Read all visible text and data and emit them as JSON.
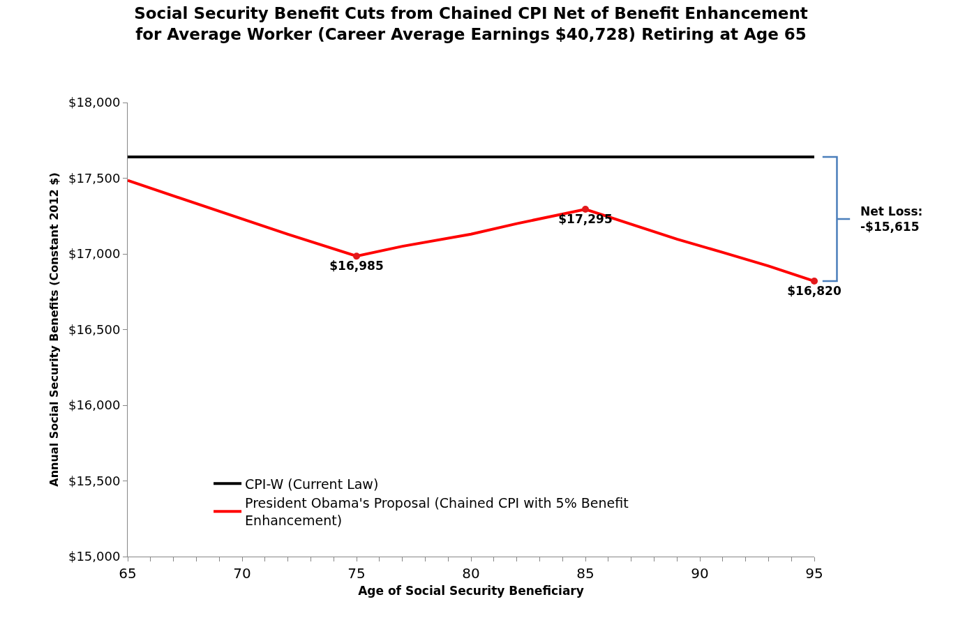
{
  "chart_data": {
    "type": "line",
    "title": "Social Security Benefit Cuts from Chained CPI Net of Benefit Enhancement\nfor Average Worker (Career Average Earnings $40,728) Retiring at Age 65",
    "xlabel": "Age of Social Security Beneficiary",
    "ylabel": "Annual Social Security Benefits (Constant 2012 $)",
    "xlim": [
      65,
      95
    ],
    "xticks": [
      65,
      70,
      75,
      80,
      85,
      90,
      95
    ],
    "ylim": [
      15000,
      18000
    ],
    "yticks": [
      {
        "value": 15000,
        "label": "$15,000"
      },
      {
        "value": 15500,
        "label": "$15,500"
      },
      {
        "value": 16000,
        "label": "$16,000"
      },
      {
        "value": 16500,
        "label": "$16,500"
      },
      {
        "value": 17000,
        "label": "$17,000"
      },
      {
        "value": 17500,
        "label": "$17,500"
      },
      {
        "value": 18000,
        "label": "$18,000"
      }
    ],
    "series": [
      {
        "name": "CPI-W (Current Law)",
        "color": "#000000",
        "x": [
          65,
          95
        ],
        "values": [
          17640,
          17640
        ]
      },
      {
        "name": "President Obama's Proposal (Chained CPI with 5% Benefit Enhancement)",
        "color": "#ff0000",
        "x": [
          65,
          71,
          72,
          75,
          77,
          80,
          82,
          85,
          89,
          91,
          93,
          95
        ],
        "values": [
          17485,
          17180,
          17130,
          16985,
          17050,
          17130,
          17200,
          17295,
          17097,
          17010,
          16920,
          16820
        ]
      },
      {
        "type": "scatter",
        "color": "#e31a1c",
        "marker": "circle",
        "x": [
          75,
          85,
          95
        ],
        "values": [
          16985,
          17295,
          16820
        ],
        "value_labels": [
          "$16,985",
          "$17,295",
          "$16,820"
        ]
      }
    ],
    "annotations": [
      "Net Loss:\n-$15,615"
    ],
    "legend": "bottom left",
    "marker": "none",
    "line_style": "solid"
  }
}
